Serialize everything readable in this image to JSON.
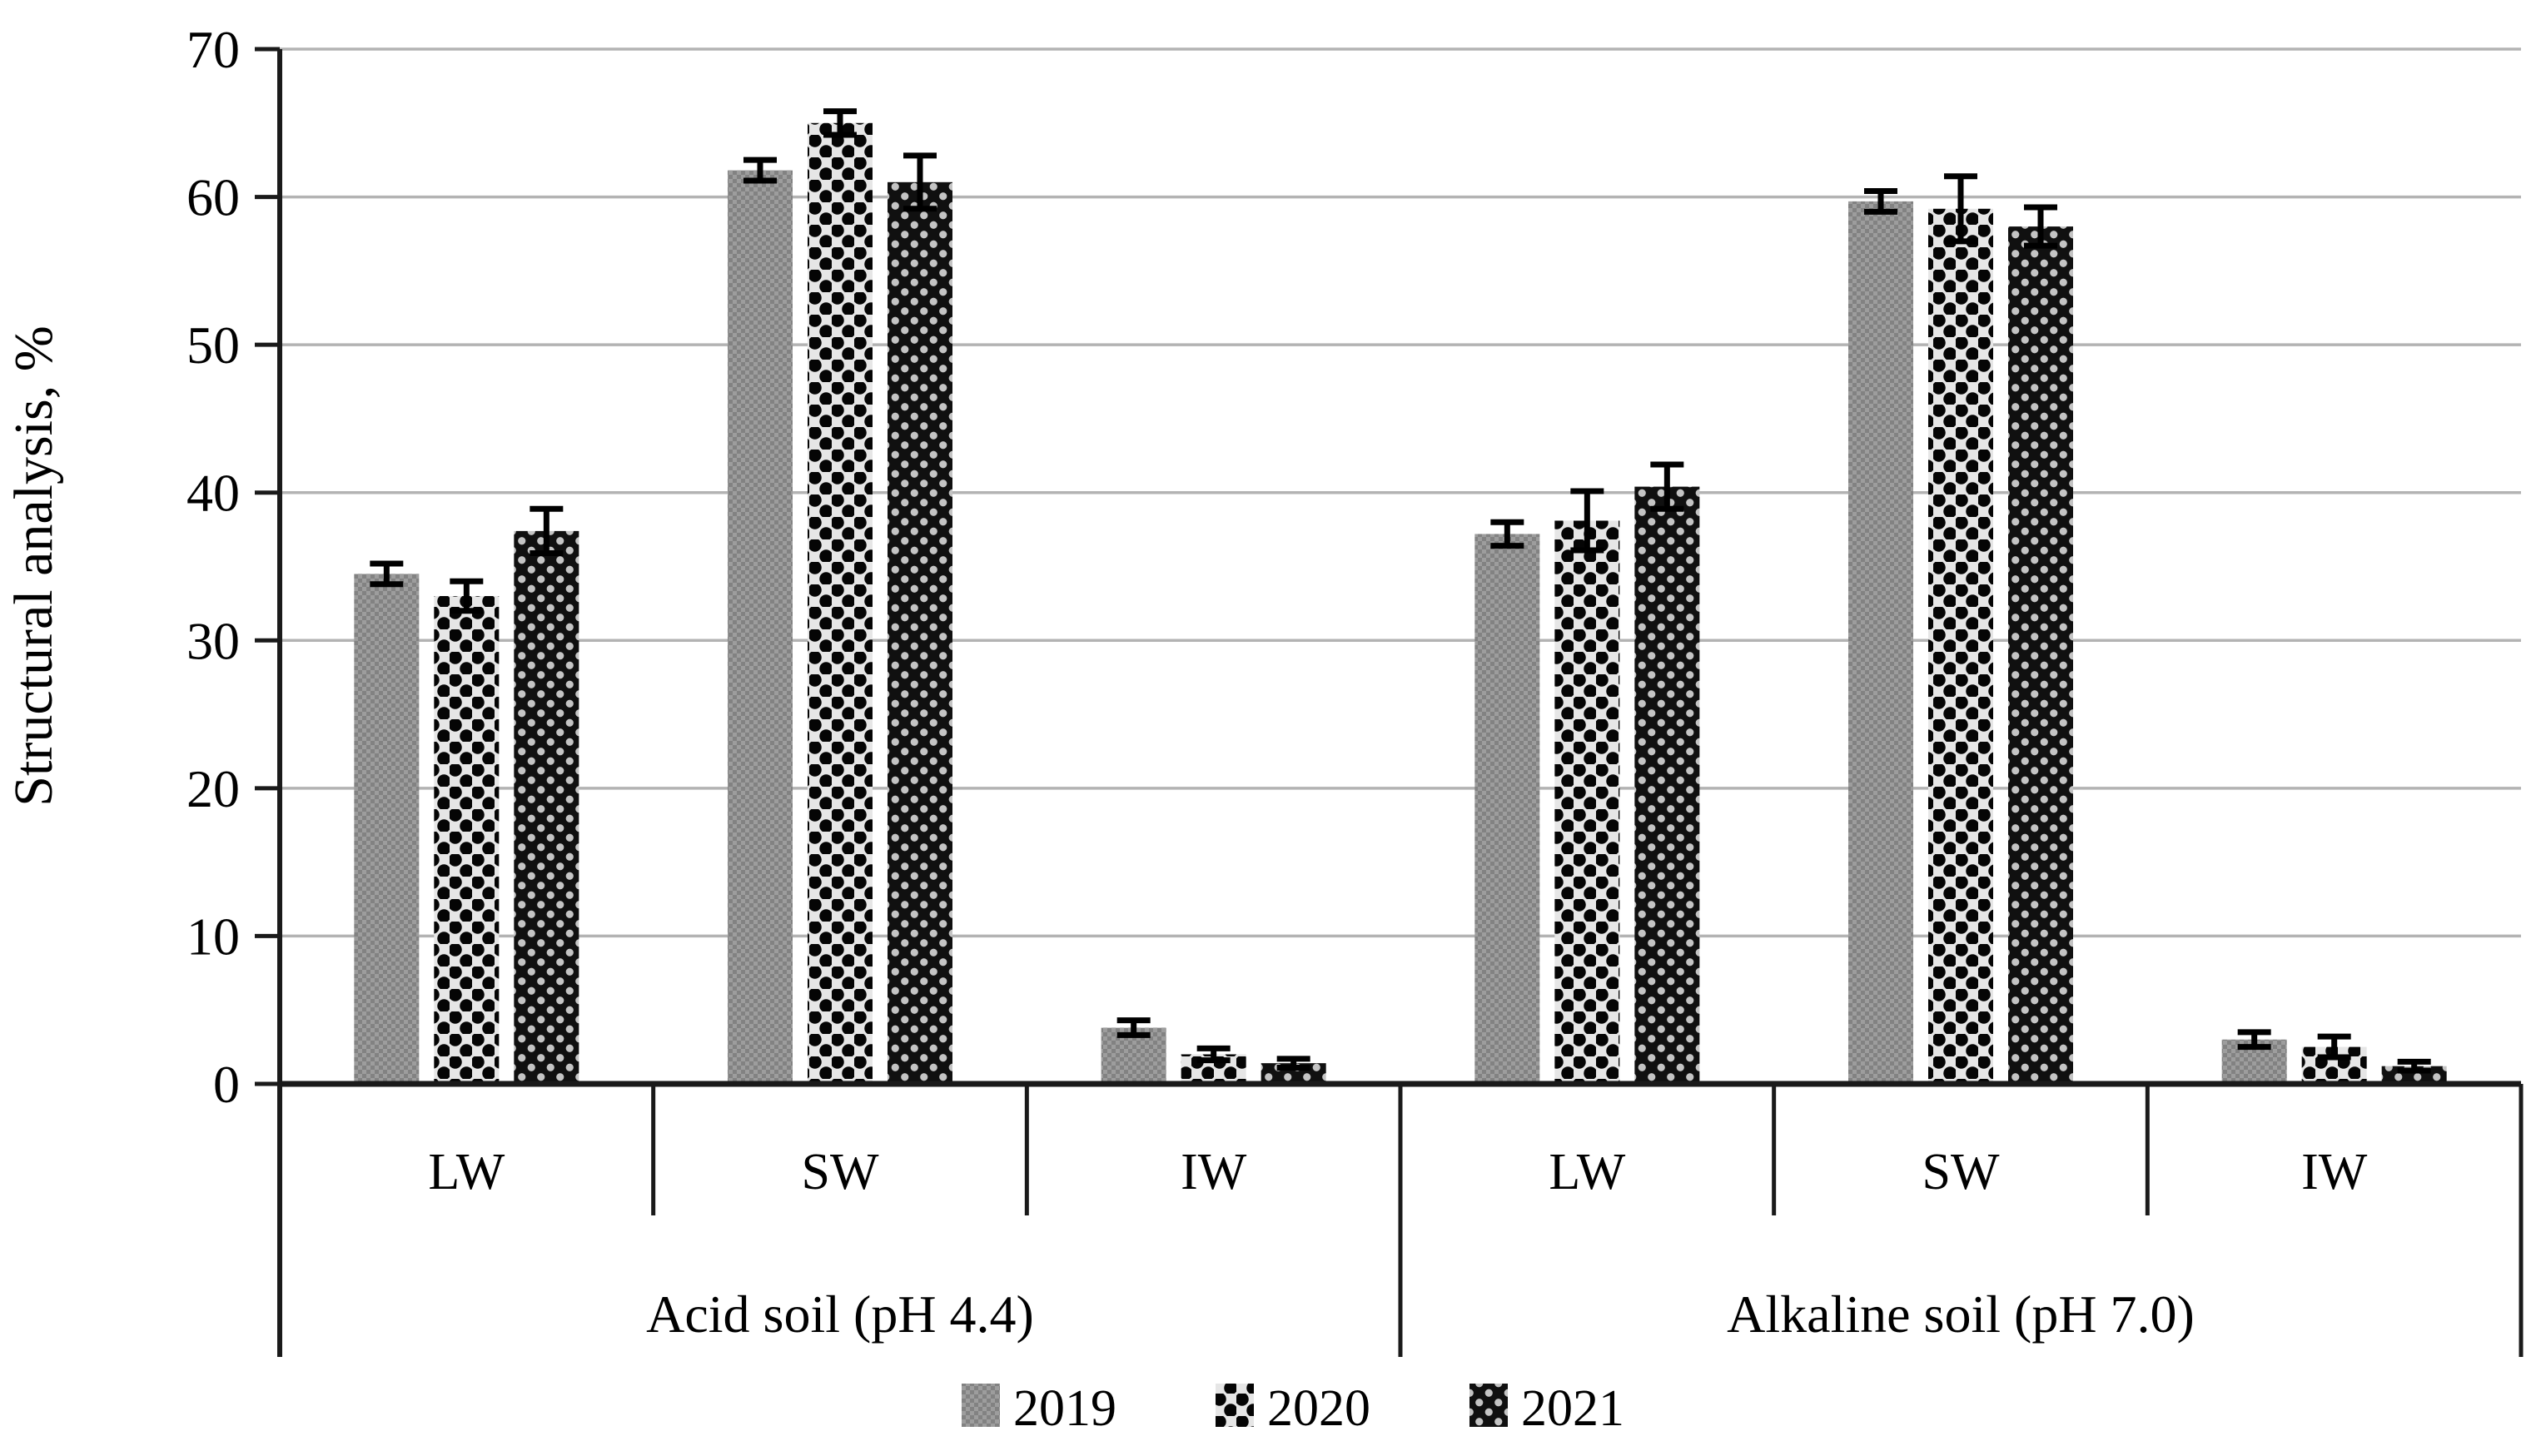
{
  "chart_data": {
    "type": "bar",
    "title": "",
    "ylabel": "Structural analysis, %",
    "ylim": [
      0,
      70
    ],
    "yticks": [
      "0",
      "10",
      "20",
      "30",
      "40",
      "50",
      "60",
      "70"
    ],
    "grid": "on",
    "legend_position": "bottom-center",
    "groups": [
      {
        "label": "Acid soil (pH 4.4)",
        "categories": [
          "LW",
          "SW",
          "IW"
        ]
      },
      {
        "label": "Alkaline soil (pH 7.0)",
        "categories": [
          "LW",
          "SW",
          "IW"
        ]
      }
    ],
    "category_order": [
      "Acid LW",
      "Acid SW",
      "Acid IW",
      "Alkaline LW",
      "Alkaline SW",
      "Alkaline IW"
    ],
    "series": [
      {
        "name": "2019",
        "values": [
          34.5,
          61.8,
          3.8,
          37.2,
          59.7,
          3.0
        ],
        "errors": [
          0.7,
          0.7,
          0.5,
          0.8,
          0.7,
          0.5
        ],
        "pattern": "fine-gray-checker"
      },
      {
        "name": "2020",
        "values": [
          33.0,
          65.0,
          2.0,
          38.1,
          59.2,
          2.5
        ],
        "errors": [
          1.0,
          0.8,
          0.4,
          2.0,
          2.2,
          0.7
        ],
        "pattern": "black-dots-on-light"
      },
      {
        "name": "2021",
        "values": [
          37.4,
          61.0,
          1.4,
          40.4,
          58.0,
          1.2
        ],
        "errors": [
          1.5,
          1.8,
          0.3,
          1.5,
          1.3,
          0.3
        ],
        "pattern": "light-dots-on-black"
      }
    ],
    "colors": {
      "grid": "#b3b3b3",
      "axis": "#1a1a1a",
      "error_bar": "#000000",
      "text": "#000000",
      "bar_2019_base": "#8f8f8f",
      "bar_2019_light": "#9d9d9d",
      "bar_2019_dark": "#828282",
      "bar_2020_base": "#e6e6e6",
      "bar_2020_dot": "#050505",
      "bar_2021_base": "#101010",
      "bar_2021_dot": "#c4c4c4"
    }
  }
}
